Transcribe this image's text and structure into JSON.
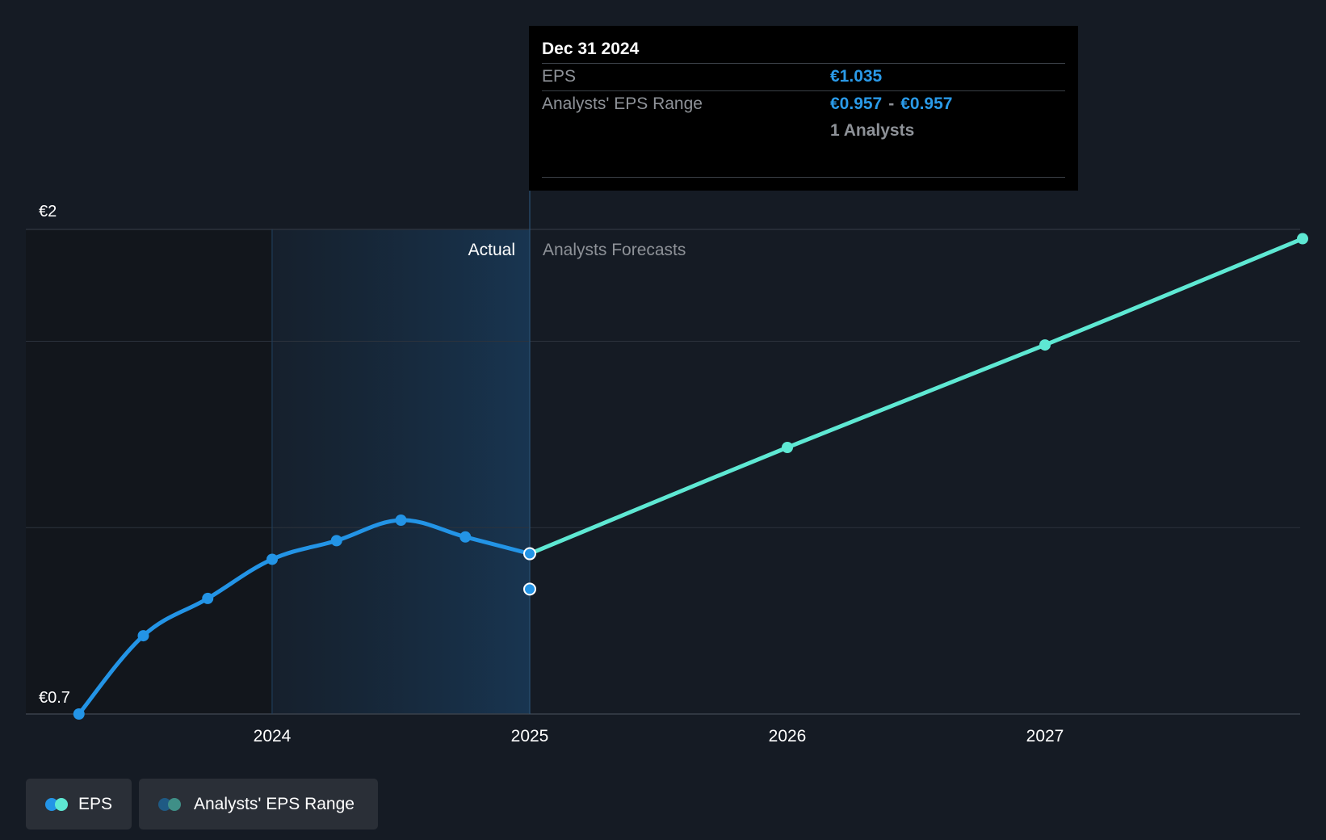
{
  "chart_data": {
    "type": "line",
    "ylim": [
      0.7,
      2.0
    ],
    "y_tick_labels": [
      {
        "value": 2.0,
        "label": "€2"
      },
      {
        "value": 0.7,
        "label": "€0.7"
      }
    ],
    "x_ticks": [
      2024,
      2025,
      2026,
      2027
    ],
    "x_tick_labels": [
      "2024",
      "2025",
      "2026",
      "2027"
    ],
    "region_labels": {
      "actual": "Actual",
      "forecast": "Analysts Forecasts"
    },
    "series": [
      {
        "name": "EPS",
        "kind": "actual",
        "color": "#2394e6",
        "points": [
          {
            "x": 2023.25,
            "y": 0.7
          },
          {
            "x": 2023.5,
            "y": 0.91
          },
          {
            "x": 2023.75,
            "y": 1.01
          },
          {
            "x": 2024.0,
            "y": 1.115
          },
          {
            "x": 2024.25,
            "y": 1.165
          },
          {
            "x": 2024.5,
            "y": 1.22
          },
          {
            "x": 2024.75,
            "y": 1.175
          },
          {
            "x": 2025.0,
            "y": 1.13
          }
        ]
      },
      {
        "name": "EPS",
        "kind": "forecast",
        "color": "#5ee8d3",
        "points": [
          {
            "x": 2025.0,
            "y": 1.13
          },
          {
            "x": 2026.0,
            "y": 1.415
          },
          {
            "x": 2027.0,
            "y": 1.69
          },
          {
            "x": 2028.0,
            "y": 1.975
          }
        ]
      }
    ],
    "range_points": [
      {
        "x": 2025.0,
        "y": 1.035
      }
    ],
    "tooltip": {
      "date": "Dec 31 2024",
      "eps_label": "EPS",
      "eps_value": "€1.035",
      "range_label": "Analysts' EPS Range",
      "range_low": "€0.957",
      "range_separator": "-",
      "range_high": "€0.957",
      "analysts": "1 Analysts"
    },
    "legend": [
      {
        "label": "EPS",
        "colors": [
          "#2394e6",
          "#5ee8d3"
        ]
      },
      {
        "label": "Analysts' EPS Range",
        "colors": [
          "#1f5a84",
          "#3f8f87"
        ]
      }
    ]
  }
}
